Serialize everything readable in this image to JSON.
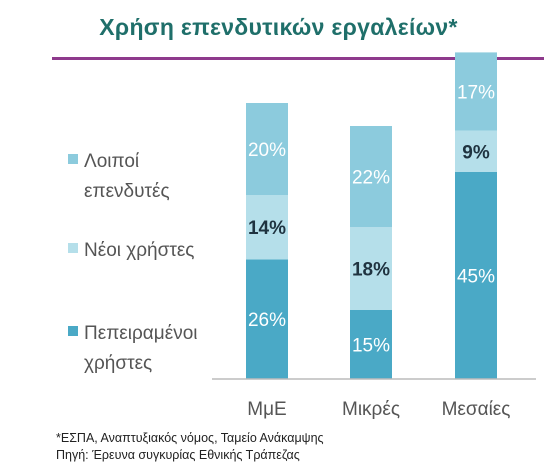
{
  "title": "Χρήση επενδυτικών εργαλείων*",
  "footnotes": {
    "line1": "*ΕΣΠΑ, Αναπτυξιακός νόμος, Ταμείο Ανάκαμψης",
    "line2": "Πηγή: Έρευνα συγκυρίας Εθνικής Τράπεζας"
  },
  "colors": {
    "title": "#1f6f6a",
    "rule": "#8e3a8c",
    "experienced": "#4aa9c6",
    "new_users": "#b5dfea",
    "other": "#8ccbdd",
    "axis": "#bbbbbb"
  },
  "chart_data": {
    "type": "bar",
    "stacked": true,
    "categories": [
      "ΜμΕ",
      "Μικρές",
      "Μεσαίες"
    ],
    "series": [
      {
        "name": "Πεπειραμένοι χρήστες",
        "values": [
          26,
          15,
          45
        ],
        "labels": [
          "26%",
          "15%",
          "45%"
        ],
        "color": "#4aa9c6",
        "label_color": "#ffffff",
        "label_bold": false
      },
      {
        "name": "Νέοι χρήστες",
        "values": [
          14,
          18,
          9
        ],
        "labels": [
          "14%",
          "18%",
          "9%"
        ],
        "color": "#b5dfea",
        "label_color": "#1f3340",
        "label_bold": true
      },
      {
        "name": "Λοιποί επενδυτές",
        "values": [
          20,
          22,
          17
        ],
        "labels": [
          "20%",
          "22%",
          "17%"
        ],
        "color": "#8ccbdd",
        "label_color": "#ffffff",
        "label_bold": false
      }
    ],
    "legend": [
      {
        "lines": [
          "Λοιποί",
          "επενδυτές"
        ],
        "color": "#8ccbdd"
      },
      {
        "lines": [
          "Νέοι χρήστες"
        ],
        "color": "#b5dfea"
      },
      {
        "lines": [
          "Πεπειραμένοι",
          "χρήστες"
        ],
        "color": "#4aa9c6"
      }
    ],
    "legend_position": "left",
    "grid": false
  }
}
